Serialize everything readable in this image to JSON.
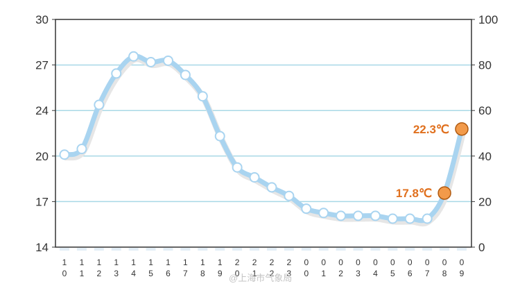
{
  "chart_data": {
    "type": "line",
    "categories": [
      "10",
      "11",
      "12",
      "13",
      "14",
      "15",
      "16",
      "17",
      "18",
      "19",
      "20",
      "21",
      "22",
      "23",
      "00",
      "01",
      "02",
      "03",
      "04",
      "05",
      "06",
      "07",
      "08",
      "09"
    ],
    "series": [
      {
        "values": [
          20.5,
          20.9,
          24.0,
          26.2,
          27.4,
          27.0,
          27.1,
          26.1,
          24.6,
          21.8,
          19.6,
          18.9,
          18.2,
          17.6,
          16.7,
          16.4,
          16.2,
          16.2,
          16.2,
          16.0,
          16.0,
          16.0,
          17.8,
          22.3
        ],
        "line_color": "#a9d4f0",
        "marker_color": "#ffffff",
        "marker_stroke": "#a9d4f0"
      }
    ],
    "highlights": [
      {
        "index": 22,
        "label": "17.8℃",
        "color": "#f29a4a"
      },
      {
        "index": 23,
        "label": "22.3℃",
        "color": "#f29a4a"
      }
    ],
    "ylim": [
      14,
      30
    ],
    "yticks": [
      "30",
      "27",
      "24",
      "20",
      "17",
      "14"
    ],
    "y2lim": [
      0,
      100
    ],
    "y2ticks": [
      "100",
      "80",
      "60",
      "40",
      "20",
      "0"
    ],
    "grid": true,
    "grid_color": "#a8d8e6",
    "watermark": "@上海市气象局"
  }
}
